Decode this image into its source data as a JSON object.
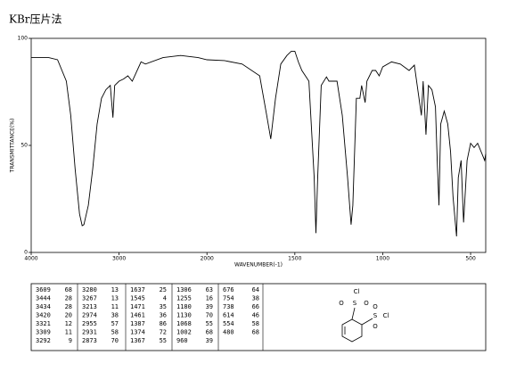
{
  "chart_data": {
    "type": "line",
    "title": "KBr压片法",
    "xlabel": "WAVENUMBER(-1)",
    "ylabel": "TRANSMITTANCE(%)",
    "x": [
      4000,
      3800,
      3700,
      3600,
      3550,
      3500,
      3450,
      3420,
      3400,
      3350,
      3300,
      3250,
      3200,
      3150,
      3100,
      3070,
      3050,
      3000,
      2950,
      2900,
      2850,
      2750,
      2700,
      2500,
      2300,
      2100,
      2000,
      1900,
      1800,
      1700,
      1660,
      1637,
      1610,
      1580,
      1545,
      1520,
      1500,
      1480,
      1460,
      1440,
      1420,
      1390,
      1380,
      1370,
      1350,
      1320,
      1306,
      1290,
      1260,
      1230,
      1200,
      1180,
      1170,
      1150,
      1130,
      1120,
      1100,
      1090,
      1060,
      1040,
      1020,
      1000,
      950,
      900,
      850,
      820,
      780,
      770,
      754,
      740,
      720,
      700,
      690,
      680,
      670,
      650,
      630,
      614,
      600,
      580,
      570,
      554,
      540,
      520,
      500,
      480,
      460,
      440,
      420,
      414
    ],
    "values": [
      91,
      91,
      90,
      80,
      64,
      39,
      18,
      12.5,
      13,
      22,
      39,
      60,
      72,
      76,
      78,
      63,
      78,
      80,
      81,
      82.5,
      80,
      89,
      88,
      91,
      92,
      91,
      90,
      89.6,
      88,
      82.5,
      64,
      53,
      72,
      88,
      92,
      94,
      94,
      89,
      85,
      82.5,
      80,
      35,
      9,
      35,
      78,
      82,
      80,
      80,
      80,
      64,
      35,
      13,
      22,
      72,
      72,
      78,
      70,
      80,
      85,
      85,
      82.5,
      86.7,
      89,
      88,
      85,
      87.5,
      64,
      80,
      55,
      78,
      76,
      68,
      43,
      22,
      60,
      66,
      60,
      47,
      26,
      7.5,
      35,
      43,
      14,
      43,
      51,
      49,
      51,
      47,
      43,
      46
    ],
    "color": "#000000",
    "xlim": [
      4000,
      414
    ],
    "ylim": [
      0,
      100
    ],
    "xticks": [
      4000,
      3000,
      2000,
      1500,
      1000,
      500
    ],
    "yticks": [
      0,
      50,
      100
    ],
    "peak_table": [
      [
        [
          3609,
          68
        ],
        [
          3444,
          28
        ],
        [
          3434,
          28
        ],
        [
          3420,
          20
        ],
        [
          3321,
          12
        ],
        [
          3309,
          11
        ],
        [
          3292,
          9
        ]
      ],
      [
        [
          3280,
          13
        ],
        [
          3267,
          13
        ],
        [
          3213,
          11
        ],
        [
          2974,
          38
        ],
        [
          2955,
          57
        ],
        [
          2931,
          58
        ],
        [
          2873,
          70
        ]
      ],
      [
        [
          1637,
          25
        ],
        [
          1545,
          4
        ],
        [
          1471,
          35
        ],
        [
          1461,
          36
        ],
        [
          1387,
          86
        ],
        [
          1374,
          72
        ],
        [
          1367,
          55
        ]
      ],
      [
        [
          1306,
          63
        ],
        [
          1255,
          16
        ],
        [
          1180,
          39
        ],
        [
          1130,
          70
        ],
        [
          1068,
          55
        ],
        [
          1002,
          68
        ],
        [
          960,
          39
        ]
      ],
      [
        [
          676,
          64
        ],
        [
          754,
          38
        ],
        [
          738,
          66
        ],
        [
          614,
          46
        ],
        [
          554,
          58
        ],
        [
          480,
          68
        ]
      ]
    ],
    "structure_atoms": [
      "Cl",
      "S",
      "O",
      "O",
      "S",
      "O",
      "O",
      "Cl"
    ]
  }
}
